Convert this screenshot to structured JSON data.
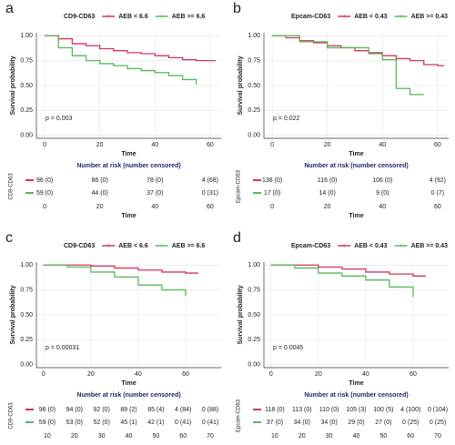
{
  "chart_data": [
    {
      "type": "line",
      "panel_label": "a",
      "legend_title": "CD9-CD63",
      "ylabel": "Survival probability",
      "xlabel": "Time",
      "annotation": "p = 0.003",
      "x": [
        0,
        5,
        10,
        15,
        20,
        25,
        30,
        35,
        40,
        45,
        50,
        55,
        60,
        62
      ],
      "series": [
        {
          "name": "AEB < 6.6",
          "color": "#d0345a",
          "values": [
            1,
            0.97,
            0.92,
            0.9,
            0.87,
            0.85,
            0.83,
            0.82,
            0.8,
            0.78,
            0.76,
            0.75,
            0.75,
            0.75
          ]
        },
        {
          "name": "AEB >= 6.6",
          "color": "#55b85a",
          "values": [
            1,
            0.88,
            0.8,
            0.75,
            0.72,
            0.7,
            0.67,
            0.65,
            0.63,
            0.6,
            0.56,
            0.51,
            null,
            null
          ]
        }
      ],
      "xlim": [
        -3,
        64
      ],
      "xticks": [
        0,
        20,
        40,
        60
      ],
      "ylim": [
        -0.03,
        1.03
      ],
      "yticks": [
        {
          "value": 0,
          "label": "0.00"
        },
        {
          "value": 0.25,
          "label": "0.25"
        },
        {
          "value": 0.5,
          "label": "0.50"
        },
        {
          "value": 0.75,
          "label": "0.75"
        },
        {
          "value": 1,
          "label": "1.00"
        }
      ],
      "risk_table": {
        "title": "Number at risk (number censored)",
        "ylabel": "CD9-CD63",
        "xlabel": "Time",
        "xlim": [
          -3,
          64
        ],
        "xticks": [
          0,
          20,
          40,
          60
        ],
        "rows": [
          [
            "96 (0)",
            "86 (0)",
            "78 (0)",
            "4 (68)"
          ],
          [
            "59 (0)",
            "44 (0)",
            "37 (0)",
            "0 (31)"
          ]
        ]
      }
    },
    {
      "type": "line",
      "panel_label": "b",
      "legend_title": "Epcam-CD63",
      "ylabel": "Survival probability",
      "xlabel": "Time",
      "annotation": "p = 0.022",
      "x": [
        0,
        5,
        10,
        15,
        20,
        25,
        30,
        35,
        40,
        45,
        50,
        55,
        60,
        62
      ],
      "series": [
        {
          "name": "AEB < 0.43",
          "color": "#d0345a",
          "values": [
            1,
            0.98,
            0.95,
            0.93,
            0.9,
            0.88,
            0.85,
            0.83,
            0.8,
            0.77,
            0.75,
            0.71,
            0.7,
            0.69
          ]
        },
        {
          "name": "AEB >= 0.43",
          "color": "#55b85a",
          "values": [
            1,
            1,
            0.94,
            0.94,
            0.88,
            0.88,
            0.88,
            0.82,
            0.76,
            0.47,
            0.41,
            0.41,
            null,
            null
          ]
        }
      ],
      "xlim": [
        -3,
        64
      ],
      "xticks": [
        0,
        20,
        40,
        60
      ],
      "ylim": [
        -0.03,
        1.03
      ],
      "yticks": [
        {
          "value": 0,
          "label": "0.00"
        },
        {
          "value": 0.25,
          "label": "0.25"
        },
        {
          "value": 0.5,
          "label": "0.50"
        },
        {
          "value": 0.75,
          "label": "0.75"
        },
        {
          "value": 1,
          "label": "1.00"
        }
      ],
      "risk_table": {
        "title": "Number at risk (number censored)",
        "ylabel": "Epcam-CD63",
        "xlabel": "Time",
        "xlim": [
          -3,
          64
        ],
        "xticks": [
          0,
          20,
          40,
          60
        ],
        "rows": [
          [
            "138 (0)",
            "116 (0)",
            "106 (0)",
            "4 (92)"
          ],
          [
            "17 (0)",
            "14 (0)",
            "9 (0)",
            "0 (7)"
          ]
        ]
      }
    },
    {
      "type": "line",
      "panel_label": "c",
      "legend_title": "CD9-CD63",
      "ylabel": "Survival probability",
      "xlabel": "Time",
      "annotation": "p = 0.00031",
      "x": [
        0,
        10,
        20,
        30,
        40,
        50,
        60,
        65
      ],
      "series": [
        {
          "name": "AEB < 6.6",
          "color": "#d0345a",
          "values": [
            1,
            1,
            0.99,
            0.97,
            0.95,
            0.93,
            0.92,
            0.91
          ]
        },
        {
          "name": "AEB >= 6.6",
          "color": "#55b85a",
          "values": [
            1,
            0.98,
            0.93,
            0.88,
            0.8,
            0.75,
            0.69,
            null
          ]
        }
      ],
      "xlim": [
        -3,
        75
      ],
      "xticks": [
        0,
        20,
        40,
        60
      ],
      "ylim": [
        -0.03,
        1.03
      ],
      "yticks": [
        {
          "value": 0,
          "label": "0.00"
        },
        {
          "value": 0.25,
          "label": "0.25"
        },
        {
          "value": 0.5,
          "label": "0.50"
        },
        {
          "value": 0.75,
          "label": "0.75"
        },
        {
          "value": 1,
          "label": "1.00"
        }
      ],
      "risk_table": {
        "title": "Number at risk (number censored)",
        "ylabel": "CD9-CD63",
        "xlim": [
          6,
          74
        ],
        "xticks": [
          10,
          20,
          30,
          40,
          50,
          60,
          70
        ],
        "rows": [
          [
            "96 (0)",
            "94 (0)",
            "92 (0)",
            "89 (2)",
            "85 (4)",
            "4 (84)",
            "0 (88)"
          ],
          [
            "59 (0)",
            "53 (0)",
            "52 (0)",
            "45 (1)",
            "42 (1)",
            "0 (41)",
            "0 (41)"
          ]
        ]
      }
    },
    {
      "type": "line",
      "panel_label": "d",
      "legend_title": "Epcam-CD63",
      "ylabel": "Survival probability",
      "xlabel": "Time",
      "annotation": "p = 0.0045",
      "x": [
        0,
        10,
        20,
        30,
        40,
        50,
        60,
        65
      ],
      "series": [
        {
          "name": "AEB < 0.43",
          "color": "#d0345a",
          "values": [
            1,
            1,
            0.98,
            0.96,
            0.93,
            0.91,
            0.89,
            0.88
          ]
        },
        {
          "name": "AEB >= 0.43",
          "color": "#55b85a",
          "values": [
            1,
            0.97,
            0.92,
            0.89,
            0.85,
            0.78,
            0.68,
            null
          ]
        }
      ],
      "xlim": [
        -3,
        75
      ],
      "xticks": [
        0,
        20,
        40,
        60
      ],
      "ylim": [
        -0.03,
        1.03
      ],
      "yticks": [
        {
          "value": 0,
          "label": "0.00"
        },
        {
          "value": 0.25,
          "label": "0.25"
        },
        {
          "value": 0.5,
          "label": "0.50"
        },
        {
          "value": 0.75,
          "label": "0.75"
        },
        {
          "value": 1,
          "label": "1.00"
        }
      ],
      "risk_table": {
        "title": "Number at risk (number censored)",
        "ylabel": "Epcam-CD63",
        "xlim": [
          6,
          74
        ],
        "xticks": [
          10,
          20,
          30,
          40,
          50,
          60,
          70
        ],
        "rows": [
          [
            "118 (0)",
            "113 (0)",
            "110 (0)",
            "105 (3)",
            "100 (5)",
            "4 (100)",
            "0 (104)"
          ],
          [
            "37 (0)",
            "34 (0)",
            "34 (0)",
            "29 (0)",
            "27 (0)",
            "0 (25)",
            "0 (25)"
          ]
        ]
      }
    }
  ]
}
